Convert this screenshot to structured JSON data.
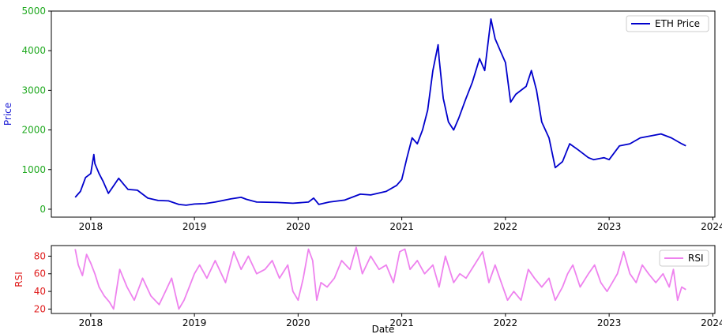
{
  "chart_data": [
    {
      "type": "line",
      "xlabel": "",
      "ylabel": "Price",
      "ylabel_color": "#1f1fd6",
      "ytick_color": "#22aa22",
      "xlim": [
        2017.62,
        2024.02
      ],
      "ylim": [
        -200,
        5000
      ],
      "xticks": [
        2018,
        2019,
        2020,
        2021,
        2022,
        2023,
        2024
      ],
      "xtick_labels": [
        "2018",
        "2019",
        "2020",
        "2021",
        "2022",
        "2023",
        "2024"
      ],
      "yticks": [
        0,
        1000,
        2000,
        3000,
        4000,
        5000
      ],
      "ytick_labels": [
        "0",
        "1000",
        "2000",
        "3000",
        "4000",
        "5000"
      ],
      "grid": false,
      "legend_position": "top-right",
      "series": [
        {
          "name": "ETH Price",
          "color": "#0000cc",
          "x": [
            2017.85,
            2017.9,
            2017.95,
            2018.0,
            2018.03,
            2018.04,
            2018.08,
            2018.12,
            2018.17,
            2018.21,
            2018.27,
            2018.32,
            2018.36,
            2018.45,
            2018.55,
            2018.65,
            2018.75,
            2018.85,
            2018.92,
            2019.0,
            2019.1,
            2019.2,
            2019.35,
            2019.45,
            2019.5,
            2019.6,
            2019.8,
            2019.95,
            2020.1,
            2020.15,
            2020.2,
            2020.3,
            2020.45,
            2020.6,
            2020.7,
            2020.85,
            2020.95,
            2021.0,
            2021.05,
            2021.1,
            2021.15,
            2021.2,
            2021.25,
            2021.3,
            2021.35,
            2021.36,
            2021.4,
            2021.45,
            2021.5,
            2021.55,
            2021.62,
            2021.68,
            2021.75,
            2021.8,
            2021.86,
            2021.9,
            2021.95,
            2022.0,
            2022.05,
            2022.1,
            2022.2,
            2022.25,
            2022.3,
            2022.35,
            2022.42,
            2022.48,
            2022.55,
            2022.62,
            2022.7,
            2022.8,
            2022.85,
            2022.95,
            2023.0,
            2023.1,
            2023.2,
            2023.3,
            2023.4,
            2023.5,
            2023.6,
            2023.7,
            2023.74
          ],
          "y": [
            300,
            450,
            800,
            900,
            1380,
            1150,
            900,
            700,
            400,
            550,
            780,
            620,
            500,
            480,
            280,
            220,
            210,
            120,
            100,
            130,
            140,
            180,
            260,
            300,
            250,
            180,
            170,
            150,
            180,
            280,
            120,
            180,
            230,
            380,
            360,
            450,
            600,
            750,
            1300,
            1800,
            1650,
            2000,
            2500,
            3500,
            4150,
            3800,
            2800,
            2200,
            2000,
            2300,
            2800,
            3200,
            3800,
            3500,
            4800,
            4300,
            4000,
            3700,
            2700,
            2900,
            3100,
            3500,
            3000,
            2200,
            1800,
            1050,
            1200,
            1650,
            1500,
            1300,
            1250,
            1300,
            1250,
            1600,
            1650,
            1800,
            1850,
            1900,
            1800,
            1650,
            1600
          ]
        }
      ]
    },
    {
      "type": "line",
      "xlabel": "Date",
      "ylabel": "RSI",
      "ylabel_color": "#e02020",
      "ytick_color": "#e02020",
      "xlim": [
        2017.62,
        2024.02
      ],
      "ylim": [
        15,
        92
      ],
      "xticks": [
        2018,
        2019,
        2020,
        2021,
        2022,
        2023,
        2024
      ],
      "xtick_labels": [
        "2018",
        "2019",
        "2020",
        "2021",
        "2022",
        "2023",
        "2024"
      ],
      "yticks": [
        20,
        40,
        60,
        80
      ],
      "ytick_labels": [
        "20",
        "40",
        "60",
        "80"
      ],
      "grid": false,
      "legend_position": "top-right",
      "series": [
        {
          "name": "RSI",
          "color": "#ee82ee",
          "x": [
            2017.85,
            2017.88,
            2017.92,
            2017.96,
            2018.0,
            2018.04,
            2018.08,
            2018.13,
            2018.18,
            2018.22,
            2018.28,
            2018.35,
            2018.42,
            2018.5,
            2018.58,
            2018.66,
            2018.72,
            2018.78,
            2018.85,
            2018.9,
            2018.95,
            2019.0,
            2019.05,
            2019.12,
            2019.2,
            2019.3,
            2019.38,
            2019.45,
            2019.52,
            2019.6,
            2019.68,
            2019.75,
            2019.82,
            2019.9,
            2019.95,
            2020.0,
            2020.05,
            2020.1,
            2020.14,
            2020.18,
            2020.22,
            2020.28,
            2020.35,
            2020.42,
            2020.5,
            2020.56,
            2020.62,
            2020.7,
            2020.78,
            2020.85,
            2020.92,
            2020.98,
            2021.03,
            2021.08,
            2021.15,
            2021.22,
            2021.3,
            2021.36,
            2021.42,
            2021.5,
            2021.56,
            2021.62,
            2021.7,
            2021.78,
            2021.84,
            2021.9,
            2021.96,
            2022.02,
            2022.08,
            2022.15,
            2022.22,
            2022.28,
            2022.35,
            2022.42,
            2022.48,
            2022.55,
            2022.6,
            2022.65,
            2022.72,
            2022.8,
            2022.86,
            2022.92,
            2022.98,
            2023.03,
            2023.08,
            2023.14,
            2023.2,
            2023.26,
            2023.32,
            2023.38,
            2023.45,
            2023.52,
            2023.58,
            2023.62,
            2023.66,
            2023.7,
            2023.74
          ],
          "y": [
            88,
            70,
            58,
            82,
            72,
            60,
            45,
            35,
            28,
            20,
            65,
            45,
            30,
            55,
            35,
            25,
            40,
            55,
            20,
            30,
            45,
            60,
            70,
            55,
            75,
            50,
            85,
            65,
            80,
            60,
            65,
            75,
            55,
            70,
            40,
            30,
            55,
            88,
            75,
            30,
            50,
            45,
            55,
            75,
            65,
            90,
            60,
            80,
            65,
            70,
            50,
            85,
            88,
            65,
            75,
            60,
            70,
            45,
            80,
            50,
            60,
            55,
            70,
            85,
            50,
            70,
            50,
            30,
            40,
            30,
            65,
            55,
            45,
            55,
            30,
            45,
            60,
            70,
            45,
            60,
            70,
            50,
            40,
            50,
            60,
            85,
            60,
            50,
            70,
            60,
            50,
            60,
            45,
            65,
            30,
            45,
            42
          ]
        }
      ]
    }
  ]
}
